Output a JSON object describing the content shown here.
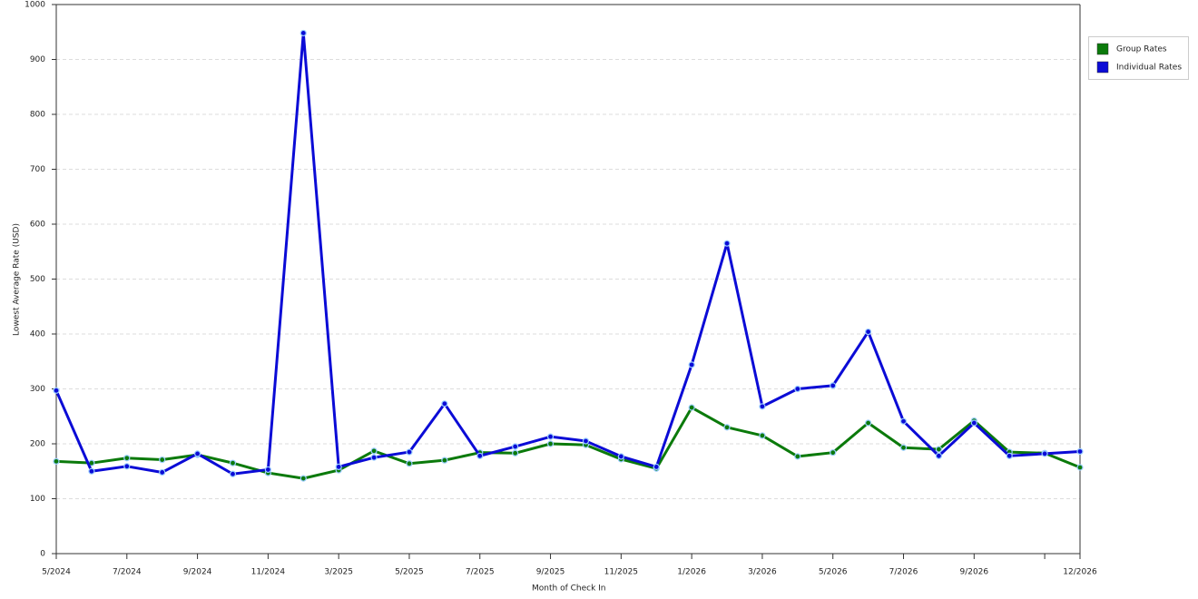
{
  "chart_data": {
    "type": "line",
    "x_label": "Month of Check In",
    "y_label": "Lowest Average Rate (USD)",
    "categories": [
      "5/2024",
      null,
      "7/2024",
      null,
      "9/2024",
      null,
      "11/2024",
      null,
      "3/2025",
      null,
      "5/2025",
      null,
      "7/2025",
      null,
      "9/2025",
      null,
      "11/2025",
      null,
      "1/2026",
      null,
      "3/2026",
      null,
      "5/2026",
      null,
      "7/2026",
      null,
      "9/2026",
      null,
      null,
      "12/2026"
    ],
    "series": [
      {
        "name": "Group Rates",
        "color": "#0b7a0b",
        "values": [
          168,
          165,
          174,
          171,
          180,
          165,
          147,
          137,
          152,
          187,
          164,
          170,
          184,
          183,
          200,
          198,
          172,
          155,
          266,
          230,
          215,
          177,
          184,
          238,
          193,
          190,
          242,
          185,
          183,
          157
        ]
      },
      {
        "name": "Individual Rates",
        "color": "#0b0bd6",
        "values": [
          297,
          150,
          159,
          148,
          182,
          145,
          153,
          948,
          158,
          175,
          185,
          273,
          178,
          195,
          213,
          205,
          177,
          158,
          344,
          565,
          268,
          300,
          306,
          404,
          241,
          178,
          238,
          178,
          182,
          186
        ]
      }
    ],
    "ylim": [
      0,
      1000
    ],
    "yticks": [
      0,
      100,
      200,
      300,
      400,
      500,
      600,
      700,
      800,
      900,
      1000
    ],
    "grid": true,
    "legend": "right"
  }
}
